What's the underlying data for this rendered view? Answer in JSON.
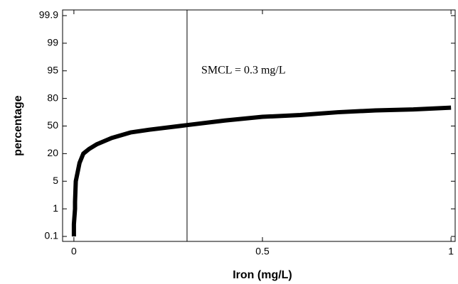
{
  "chart_data": {
    "type": "line",
    "x_label": "Iron (mg/L)",
    "y_label": "percentage",
    "annotation": "SMCL = 0.3 mg/L",
    "vline": 0.3,
    "xlim": [
      -0.03,
      1.011
    ],
    "xticks": [
      0,
      0.5,
      1
    ],
    "ylim": [
      0.1,
      99.9
    ],
    "yticks": [
      0.1,
      1,
      5,
      20,
      50,
      80,
      95,
      99,
      99.9
    ],
    "yscale": "probability-ticks",
    "series": [
      {
        "color": "#000000",
        "x": [
          0,
          0,
          0.003,
          0.003,
          0.005,
          0.01,
          0.015,
          0.025,
          0.04,
          0.06,
          0.1,
          0.15,
          0.2,
          0.3,
          0.4,
          0.5,
          0.6,
          0.7,
          0.8,
          0.9,
          1.0
        ],
        "values": [
          0.1,
          0.5,
          1,
          2,
          5,
          10,
          15,
          20,
          25,
          30,
          37,
          43,
          46,
          51,
          56,
          60,
          62,
          65,
          67,
          68,
          70
        ]
      }
    ]
  }
}
